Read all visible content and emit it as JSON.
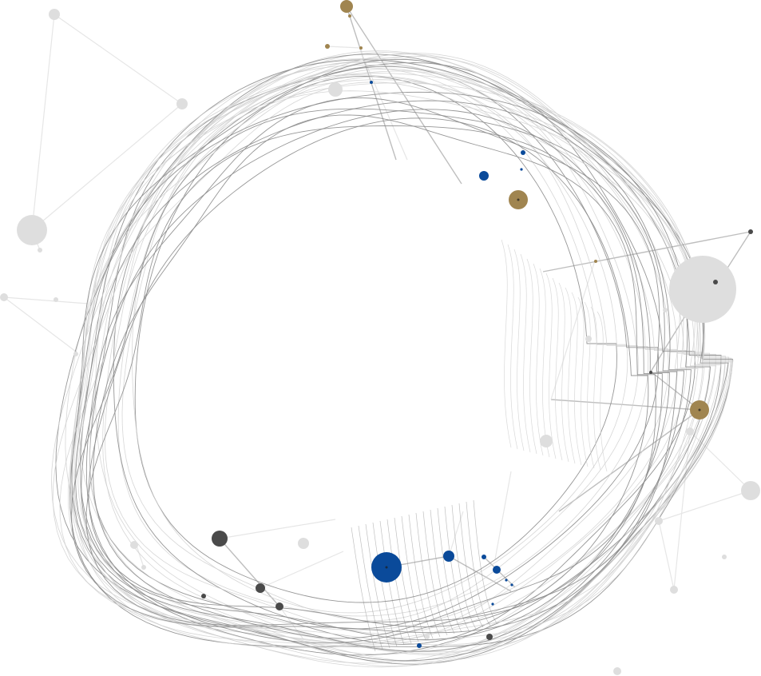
{
  "colors": {
    "background": "#ffffff",
    "contour_light": "#cfcfcf",
    "contour_dark": "#8c8c8c",
    "link_light": "#e6e6e6",
    "link_mid": "#b8b8b8",
    "node_faint": "#dedede",
    "node_dark": "#4a4a4a",
    "node_blue": "#0a4a9a",
    "node_gold": "#a08550"
  },
  "icons": [
    "network-node",
    "concentric-contour"
  ]
}
